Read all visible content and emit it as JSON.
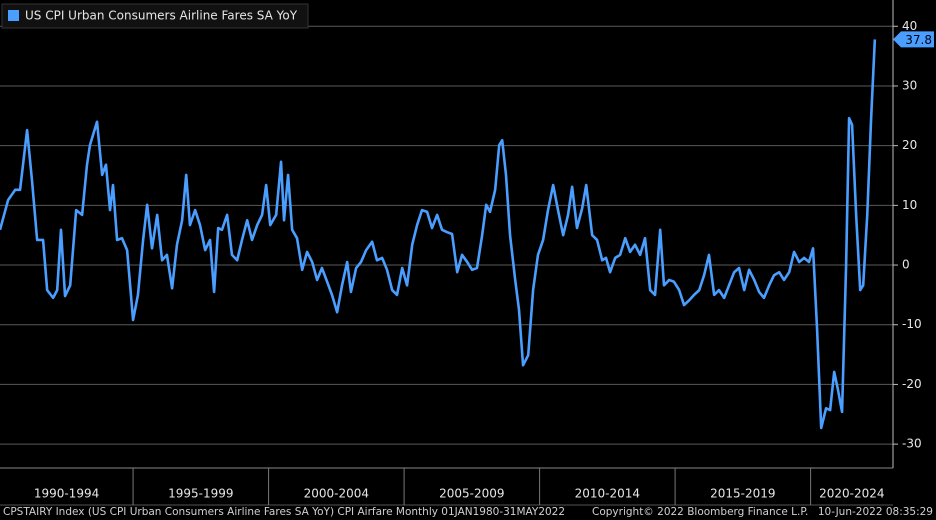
{
  "chart_data": {
    "type": "line",
    "footer_left": "CPSTAIRY Index (US CPI Urban Consumers Airline Fares SA YoY) CPI Airfare  Monthly 01JAN1980-31MAY2022",
    "footer_center": "Copyright© 2022 Bloomberg Finance L.P.",
    "footer_right": "10-Jun-2022 08:35:29",
    "xlim": [
      1990.09,
      2023.04
    ],
    "ylim": [
      -34,
      44.4
    ],
    "yticks": [
      -30,
      -20,
      -10,
      0,
      10,
      20,
      30,
      40
    ],
    "xticks": [
      {
        "value": 1990,
        "label": "1990-1994"
      },
      {
        "value": 1995,
        "label": "1995-1999"
      },
      {
        "value": 2000,
        "label": "2000-2004"
      },
      {
        "value": 2005,
        "label": "2005-2009"
      },
      {
        "value": 2010,
        "label": "2010-2014"
      },
      {
        "value": 2015,
        "label": "2015-2019"
      },
      {
        "value": 2020,
        "label": "2020-2024"
      }
    ],
    "grid": true,
    "background": "#000000",
    "series": [
      {
        "name": "US CPI Urban Consumers Airline Fares SA YoY",
        "color": "#4a9eff",
        "x": [
          1990.09,
          1990.39,
          1990.65,
          1990.83,
          1991.09,
          1991.27,
          1991.46,
          1991.68,
          1991.83,
          1992.05,
          1992.2,
          1992.34,
          1992.49,
          1992.68,
          1992.9,
          1993.12,
          1993.3,
          1993.41,
          1993.67,
          1993.86,
          1994.0,
          1994.15,
          1994.26,
          1994.41,
          1994.59,
          1994.78,
          1995.0,
          1995.18,
          1995.37,
          1995.52,
          1995.7,
          1995.89,
          1996.07,
          1996.25,
          1996.44,
          1996.62,
          1996.81,
          1996.96,
          1997.1,
          1997.29,
          1997.47,
          1997.66,
          1997.84,
          1997.99,
          1998.14,
          1998.28,
          1998.47,
          1998.65,
          1998.84,
          1999.02,
          1999.21,
          1999.39,
          1999.58,
          1999.76,
          1999.91,
          2000.06,
          2000.28,
          2000.46,
          2000.57,
          2000.72,
          2000.87,
          2001.05,
          2001.24,
          2001.42,
          2001.61,
          2001.79,
          2001.97,
          2002.16,
          2002.34,
          2002.53,
          2002.71,
          2002.9,
          2003.04,
          2003.23,
          2003.41,
          2003.6,
          2003.82,
          2004.0,
          2004.19,
          2004.37,
          2004.56,
          2004.74,
          2004.93,
          2005.11,
          2005.3,
          2005.48,
          2005.66,
          2005.85,
          2006.03,
          2006.22,
          2006.4,
          2006.59,
          2006.77,
          2006.96,
          2007.14,
          2007.33,
          2007.51,
          2007.69,
          2007.88,
          2008.03,
          2008.17,
          2008.36,
          2008.51,
          2008.62,
          2008.76,
          2008.91,
          2009.1,
          2009.24,
          2009.39,
          2009.58,
          2009.76,
          2009.94,
          2010.13,
          2010.31,
          2010.5,
          2010.68,
          2010.87,
          2011.05,
          2011.2,
          2011.38,
          2011.57,
          2011.72,
          2011.94,
          2012.12,
          2012.31,
          2012.45,
          2012.6,
          2012.79,
          2012.97,
          2013.16,
          2013.34,
          2013.52,
          2013.71,
          2013.89,
          2014.08,
          2014.26,
          2014.45,
          2014.59,
          2014.78,
          2014.96,
          2015.15,
          2015.33,
          2015.52,
          2015.7,
          2015.89,
          2016.07,
          2016.25,
          2016.44,
          2016.62,
          2016.81,
          2016.99,
          2017.18,
          2017.36,
          2017.55,
          2017.73,
          2017.92,
          2018.1,
          2018.28,
          2018.47,
          2018.65,
          2018.84,
          2019.02,
          2019.21,
          2019.39,
          2019.58,
          2019.76,
          2019.94,
          2020.09,
          2020.24,
          2020.39,
          2020.57,
          2020.72,
          2020.87,
          2021.01,
          2021.16,
          2021.31,
          2021.42,
          2021.53,
          2021.68,
          2021.83,
          2021.94,
          2022.09,
          2022.23,
          2022.37
        ],
        "values": [
          5.9,
          10.9,
          12.6,
          12.6,
          22.6,
          14.2,
          4.2,
          4.2,
          -4.2,
          -5.5,
          -4.2,
          5.9,
          -5.2,
          -3.4,
          9.2,
          8.4,
          16.8,
          20.1,
          24.0,
          15.1,
          16.8,
          9.2,
          13.4,
          4.2,
          4.5,
          2.5,
          -9.2,
          -5.0,
          4.2,
          10.1,
          2.8,
          8.4,
          0.8,
          1.7,
          -3.9,
          3.4,
          7.5,
          15.1,
          6.7,
          9.2,
          6.7,
          2.5,
          4.2,
          -4.5,
          6.2,
          5.9,
          8.4,
          1.7,
          0.8,
          4.2,
          7.5,
          4.2,
          6.7,
          8.4,
          13.4,
          6.7,
          8.4,
          17.3,
          7.5,
          15.1,
          5.9,
          4.5,
          -0.8,
          2.2,
          0.5,
          -2.5,
          -0.5,
          -2.8,
          -5.0,
          -7.9,
          -3.4,
          0.5,
          -4.5,
          -0.5,
          0.5,
          2.5,
          3.9,
          0.8,
          1.2,
          -0.8,
          -4.2,
          -5.0,
          -0.5,
          -3.4,
          3.4,
          6.7,
          9.2,
          8.9,
          6.2,
          8.4,
          5.9,
          5.5,
          5.2,
          -1.2,
          1.7,
          0.5,
          -0.8,
          -0.5,
          5.0,
          10.1,
          8.9,
          12.6,
          20.1,
          20.9,
          15.1,
          5.0,
          -2.5,
          -7.5,
          -16.8,
          -15.1,
          -4.2,
          1.7,
          4.2,
          9.2,
          13.4,
          9.2,
          5.0,
          8.4,
          13.1,
          6.2,
          9.5,
          13.4,
          5.0,
          4.2,
          0.8,
          1.2,
          -1.2,
          1.2,
          1.7,
          4.5,
          2.2,
          3.4,
          1.7,
          4.5,
          -4.2,
          -5.0,
          5.9,
          -3.4,
          -2.5,
          -2.8,
          -4.2,
          -6.7,
          -5.9,
          -5.0,
          -4.2,
          -1.7,
          1.7,
          -5.0,
          -4.2,
          -5.5,
          -3.4,
          -1.2,
          -0.5,
          -4.2,
          -0.8,
          -2.5,
          -4.5,
          -5.5,
          -3.4,
          -1.7,
          -1.2,
          -2.5,
          -1.2,
          2.2,
          0.5,
          1.2,
          0.5,
          2.8,
          -10.9,
          -27.3,
          -24.0,
          -24.3,
          -17.9,
          -20.9,
          -24.6,
          0,
          24.6,
          23.5,
          8.4,
          -4.2,
          -3.4,
          8.4,
          24.3,
          37.8
        ]
      }
    ]
  }
}
